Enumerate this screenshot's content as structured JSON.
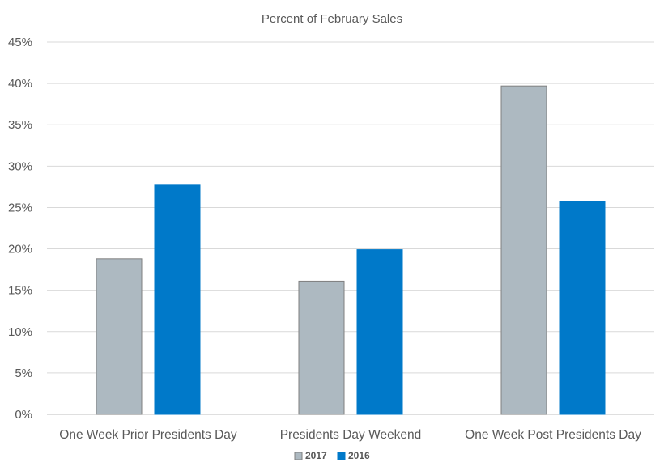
{
  "chart_data": {
    "type": "bar",
    "title": "Percent of February Sales",
    "xlabel": "",
    "ylabel": "",
    "categories": [
      "One Week Prior Presidents Day",
      "Presidents Day Weekend",
      "One Week Post Presidents Day"
    ],
    "series": [
      {
        "name": "2017",
        "values": [
          18.8,
          16.1,
          39.7
        ],
        "color": "#adb9c1",
        "border": "#7f7f7f"
      },
      {
        "name": "2016",
        "values": [
          27.7,
          19.9,
          25.7
        ],
        "color": "#0079c9",
        "border": "#0079c9"
      }
    ],
    "ylim": [
      0,
      45
    ],
    "ytick_labels": [
      "0%",
      "5%",
      "10%",
      "15%",
      "20%",
      "25%",
      "30%",
      "35%",
      "40%",
      "45%"
    ],
    "grid": true,
    "legend_position": "bottom"
  }
}
